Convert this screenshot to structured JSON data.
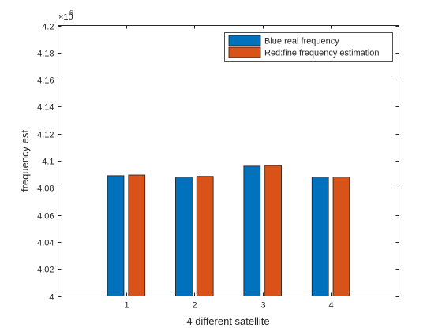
{
  "chart_data": {
    "type": "bar",
    "categories": [
      "1",
      "2",
      "3",
      "4"
    ],
    "series": [
      {
        "name": "Blue:real frequency",
        "color": "#0072BD",
        "values": [
          4089000,
          4088000,
          4096000,
          4088000
        ]
      },
      {
        "name": "Red:fine frequency estimation",
        "color": "#D95319",
        "values": [
          4089500,
          4088500,
          4096500,
          4088000
        ]
      }
    ],
    "xlabel": "4 different satellite",
    "ylabel": "frequency est",
    "xlim": [
      0,
      5
    ],
    "ylim": [
      4000000,
      4200000
    ],
    "y_ticks": [
      "4",
      "4.02",
      "4.04",
      "4.06",
      "4.08",
      "4.1",
      "4.12",
      "4.14",
      "4.16",
      "4.18",
      "4.2"
    ],
    "y_tick_values": [
      4000000,
      4020000,
      4040000,
      4060000,
      4080000,
      4100000,
      4120000,
      4140000,
      4160000,
      4180000,
      4200000
    ],
    "y_exponent_base": "×10",
    "y_exponent": "6",
    "grid": false,
    "legend_position": "top-right"
  }
}
